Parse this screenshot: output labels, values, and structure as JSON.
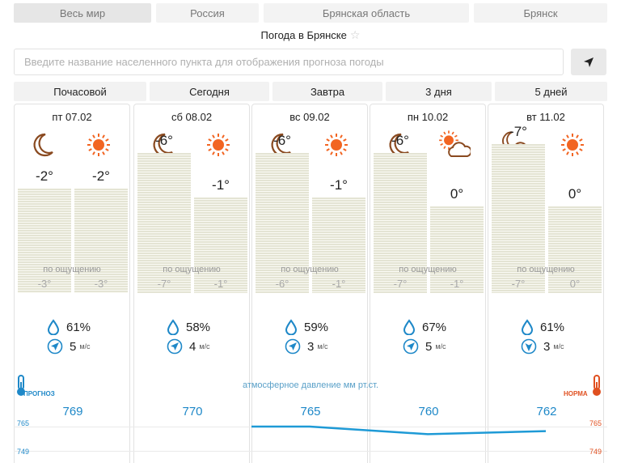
{
  "locations": [
    "Весь мир",
    "Россия",
    "Брянская область",
    "Брянск"
  ],
  "title": "Погода в Брянске",
  "search_placeholder": "Введите название населенного пункта для отображения прогноза погоды",
  "periods": [
    "Почасовой",
    "Сегодня",
    "Завтра",
    "3 дня",
    "5 дней"
  ],
  "feels_label": "по ощущению",
  "days": [
    {
      "date": "пт 07.02",
      "night_icon": "moon-icon",
      "day_icon": "sun-icon",
      "t_night": "-2°",
      "t_day": "-2°",
      "t_night_val": -2,
      "t_day_val": -2,
      "f_night": "-3°",
      "f_day": "-3°",
      "humidity": "61%",
      "wind": "5",
      "wind_dir": "north-east",
      "pressure": "769",
      "pressure_val": 769
    },
    {
      "date": "сб 08.02",
      "night_icon": "moon-icon",
      "day_icon": "sun-icon",
      "t_night": "-6°",
      "t_day": "-1°",
      "t_night_val": -6,
      "t_day_val": -1,
      "f_night": "-7°",
      "f_day": "-1°",
      "humidity": "58%",
      "wind": "4",
      "wind_dir": "north-east",
      "pressure": "770",
      "pressure_val": 770
    },
    {
      "date": "вс 09.02",
      "night_icon": "moon-icon",
      "day_icon": "sun-icon",
      "t_night": "-6°",
      "t_day": "-1°",
      "t_night_val": -6,
      "t_day_val": -1,
      "f_night": "-6°",
      "f_day": "-1°",
      "humidity": "59%",
      "wind": "3",
      "wind_dir": "north-east",
      "pressure": "765",
      "pressure_val": 765
    },
    {
      "date": "пн 10.02",
      "night_icon": "moon-icon",
      "day_icon": "sun-behind-cloud-icon",
      "t_night": "-6°",
      "t_day": "0°",
      "t_night_val": -6,
      "t_day_val": 0,
      "f_night": "-7°",
      "f_day": "-1°",
      "humidity": "67%",
      "wind": "5",
      "wind_dir": "north-east",
      "pressure": "760",
      "pressure_val": 760
    },
    {
      "date": "вт 11.02",
      "night_icon": "moon-behind-cloud-icon",
      "day_icon": "sun-icon",
      "t_night": "-7°",
      "t_day": "0°",
      "t_night_val": -7,
      "t_day_val": 0,
      "f_night": "-7°",
      "f_day": "0°",
      "humidity": "61%",
      "wind": "3",
      "wind_dir": "south",
      "pressure": "762",
      "pressure_val": 762
    }
  ],
  "wind_unit": "м/с",
  "pressure": {
    "label": "атмосферное давление  мм рт.ст.",
    "forecast_label": "ПРОГНОЗ",
    "norm_label": "НОРМА",
    "scale_top": "765",
    "scale_bottom": "749",
    "line_color": "#1e9ad6"
  },
  "colors": {
    "temp_bar": "#e4e4d4",
    "sun": "#f26522",
    "moon": "#8a4a20",
    "pressure": "#1e88c8",
    "norm": "#e05020"
  }
}
